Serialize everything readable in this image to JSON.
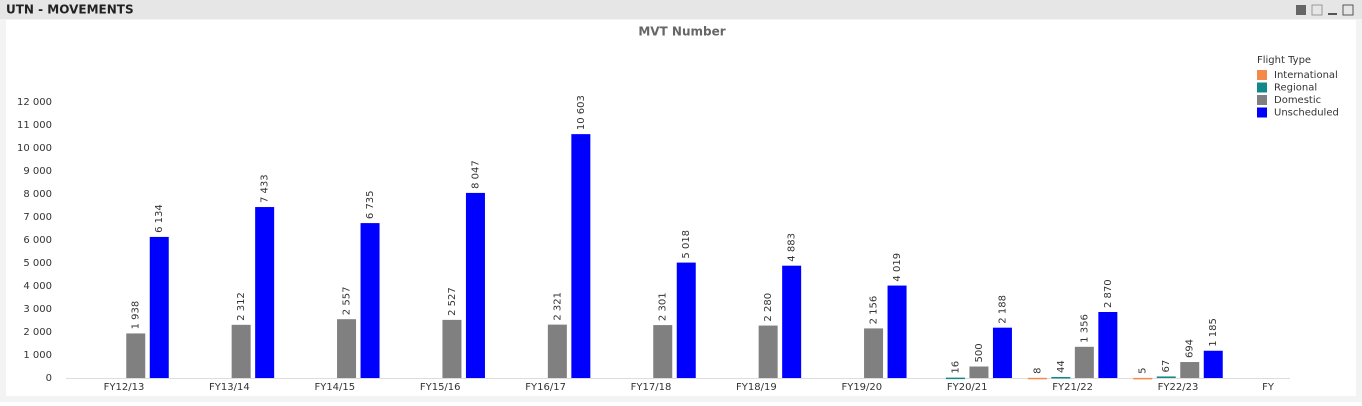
{
  "window_title": "UTN - MOVEMENTS",
  "chart_data": {
    "type": "bar",
    "title": "MVT Number",
    "x_label": "FY",
    "categories": [
      "FY12/13",
      "FY13/14",
      "FY14/15",
      "FY15/16",
      "FY16/17",
      "FY17/18",
      "FY18/19",
      "FY19/20",
      "FY20/21",
      "FY21/22",
      "FY22/23"
    ],
    "legend_title": "Flight Type",
    "legend": "top-right",
    "series": [
      {
        "name": "International",
        "color": "#f5894a",
        "values": [
          null,
          null,
          null,
          null,
          null,
          null,
          null,
          null,
          null,
          8,
          5
        ],
        "value_labels": [
          null,
          null,
          null,
          null,
          null,
          null,
          null,
          null,
          null,
          "8",
          "5"
        ]
      },
      {
        "name": "Regional",
        "color": "#13888a",
        "values": [
          null,
          null,
          null,
          null,
          null,
          null,
          null,
          null,
          16,
          44,
          67
        ],
        "value_labels": [
          null,
          null,
          null,
          null,
          null,
          null,
          null,
          null,
          "16",
          "44",
          "67"
        ]
      },
      {
        "name": "Domestic",
        "color": "#808080",
        "values": [
          1938,
          2312,
          2557,
          2527,
          2321,
          2301,
          2280,
          2156,
          500,
          1356,
          694
        ],
        "value_labels": [
          "1 938",
          "2 312",
          "2 557",
          "2 527",
          "2 321",
          "2 301",
          "2 280",
          "2 156",
          "500",
          "1 356",
          "694"
        ]
      },
      {
        "name": "Unscheduled",
        "color": "#0000ff",
        "values": [
          6134,
          7433,
          6735,
          8047,
          10603,
          5018,
          4883,
          4019,
          2188,
          2870,
          1185
        ],
        "value_labels": [
          "6 134",
          "7 433",
          "6 735",
          "8 047",
          "10 603",
          "5 018",
          "4 883",
          "4 019",
          "2 188",
          "2 870",
          "1 185"
        ]
      }
    ],
    "ylim": [
      0,
      12000
    ],
    "yticks": [
      0,
      {
        "value": 1000,
        "label": "1 000"
      },
      {
        "value": 2000,
        "label": "2 000"
      },
      {
        "value": 3000,
        "label": "3 000"
      },
      {
        "value": 4000,
        "label": "4 000"
      },
      {
        "value": 5000,
        "label": "5 000"
      },
      {
        "value": 6000,
        "label": "6 000"
      },
      {
        "value": 7000,
        "label": "7 000"
      },
      {
        "value": 8000,
        "label": "8 000"
      },
      {
        "value": 9000,
        "label": "9 000"
      },
      {
        "value": 10000,
        "label": "10 000"
      },
      {
        "value": 11000,
        "label": "11 000"
      },
      {
        "value": 12000,
        "label": "12 000"
      }
    ]
  }
}
